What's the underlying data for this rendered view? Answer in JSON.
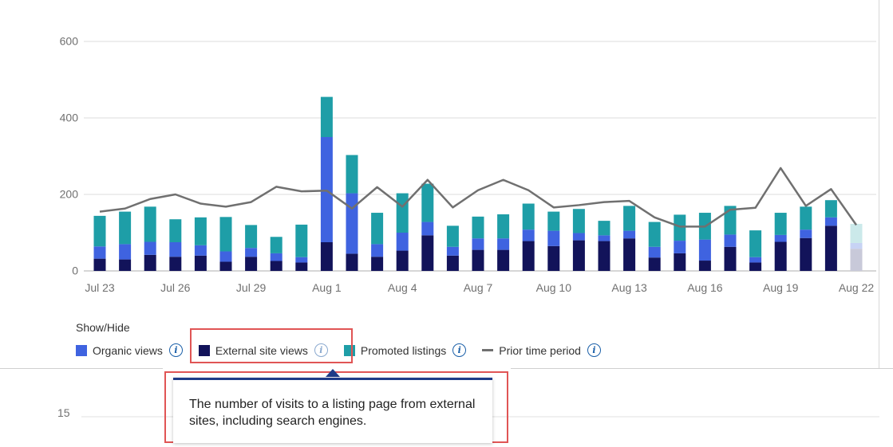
{
  "chart_data": {
    "type": "bar",
    "stacked": true,
    "y_ticks": [
      0,
      200,
      400,
      600
    ],
    "ylim": [
      0,
      600
    ],
    "x_tick_labels": [
      "Jul 23",
      "Jul 26",
      "Jul 29",
      "Aug 1",
      "Aug 4",
      "Aug 7",
      "Aug 10",
      "Aug 13",
      "Aug 16",
      "Aug 19",
      "Aug 22"
    ],
    "categories": [
      "Jul 23",
      "Jul 24",
      "Jul 25",
      "Jul 26",
      "Jul 27",
      "Jul 28",
      "Jul 29",
      "Jul 30",
      "Jul 31",
      "Aug 1",
      "Aug 2",
      "Aug 3",
      "Aug 4",
      "Aug 5",
      "Aug 6",
      "Aug 7",
      "Aug 8",
      "Aug 9",
      "Aug 10",
      "Aug 11",
      "Aug 12",
      "Aug 13",
      "Aug 14",
      "Aug 15",
      "Aug 16",
      "Aug 17",
      "Aug 18",
      "Aug 19",
      "Aug 20",
      "Aug 21",
      "Aug 22"
    ],
    "series": [
      {
        "name": "External site views",
        "color": "#12135a",
        "values": [
          32,
          30,
          42,
          37,
          40,
          24,
          37,
          26,
          22,
          75,
          45,
          37,
          53,
          93,
          40,
          55,
          55,
          78,
          65,
          80,
          78,
          85,
          35,
          46,
          27,
          63,
          22,
          76,
          86,
          118,
          58
        ]
      },
      {
        "name": "Organic views",
        "color": "#3f63e0",
        "values": [
          32,
          40,
          34,
          38,
          27,
          27,
          23,
          20,
          14,
          275,
          158,
          33,
          47,
          35,
          23,
          30,
          30,
          30,
          40,
          19,
          15,
          20,
          28,
          33,
          55,
          32,
          14,
          18,
          22,
          22,
          15
        ]
      },
      {
        "name": "Promoted listings",
        "color": "#1e9ea7",
        "values": [
          80,
          85,
          92,
          60,
          73,
          90,
          60,
          43,
          85,
          105,
          100,
          82,
          103,
          100,
          55,
          57,
          63,
          68,
          50,
          63,
          38,
          65,
          65,
          68,
          70,
          75,
          70,
          58,
          60,
          45,
          50
        ]
      },
      {
        "name": "Prior time period",
        "type": "line",
        "color": "#707070",
        "values": [
          155,
          163,
          188,
          200,
          176,
          168,
          180,
          220,
          208,
          210,
          163,
          219,
          168,
          238,
          166,
          211,
          238,
          211,
          166,
          172,
          180,
          183,
          140,
          116,
          116,
          160,
          165,
          269,
          170,
          214,
          120
        ]
      }
    ],
    "legend": {
      "title": "Show/Hide",
      "items": [
        {
          "label": "Organic views",
          "color": "#3f63e0",
          "kind": "box"
        },
        {
          "label": "External site views",
          "color": "#12135a",
          "kind": "box"
        },
        {
          "label": "Promoted listings",
          "color": "#1e9ea7",
          "kind": "box"
        },
        {
          "label": "Prior time period",
          "color": "#707070",
          "kind": "line"
        }
      ]
    }
  },
  "tooltip": {
    "text": "The number of visits to a listing page from external sites, including search engines."
  },
  "lower_chart": {
    "first_tick": "15"
  }
}
